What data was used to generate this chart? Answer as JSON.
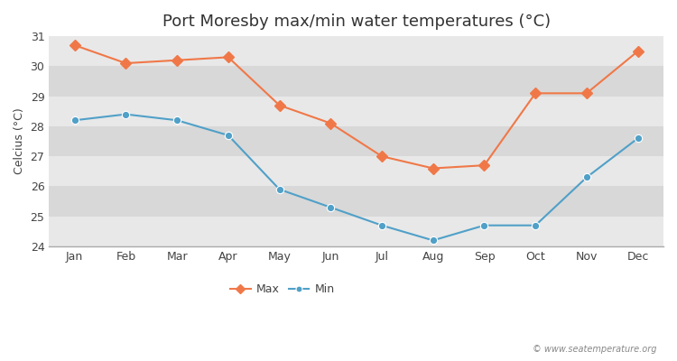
{
  "title": "Port Moresby max/min water temperatures (°C)",
  "ylabel": "Celcius (°C)",
  "months": [
    "Jan",
    "Feb",
    "Mar",
    "Apr",
    "May",
    "Jun",
    "Jul",
    "Aug",
    "Sep",
    "Oct",
    "Nov",
    "Dec"
  ],
  "max_temps": [
    30.7,
    30.1,
    30.2,
    30.3,
    28.7,
    28.1,
    27.0,
    26.6,
    26.7,
    29.1,
    29.1,
    30.5
  ],
  "min_temps": [
    28.2,
    28.4,
    28.2,
    27.7,
    25.9,
    25.3,
    24.7,
    24.2,
    24.7,
    24.7,
    26.3,
    27.6
  ],
  "max_color": "#f07848",
  "min_color": "#50a0c8",
  "band_colors": [
    "#e8e8e8",
    "#d8d8d8"
  ],
  "fig_bg": "#ffffff",
  "ylim": [
    24,
    31
  ],
  "yticks": [
    24,
    25,
    26,
    27,
    28,
    29,
    30,
    31
  ],
  "legend_labels": [
    "Max",
    "Min"
  ],
  "watermark": "© www.seatemperature.org",
  "title_fontsize": 13,
  "label_fontsize": 9,
  "tick_fontsize": 9
}
